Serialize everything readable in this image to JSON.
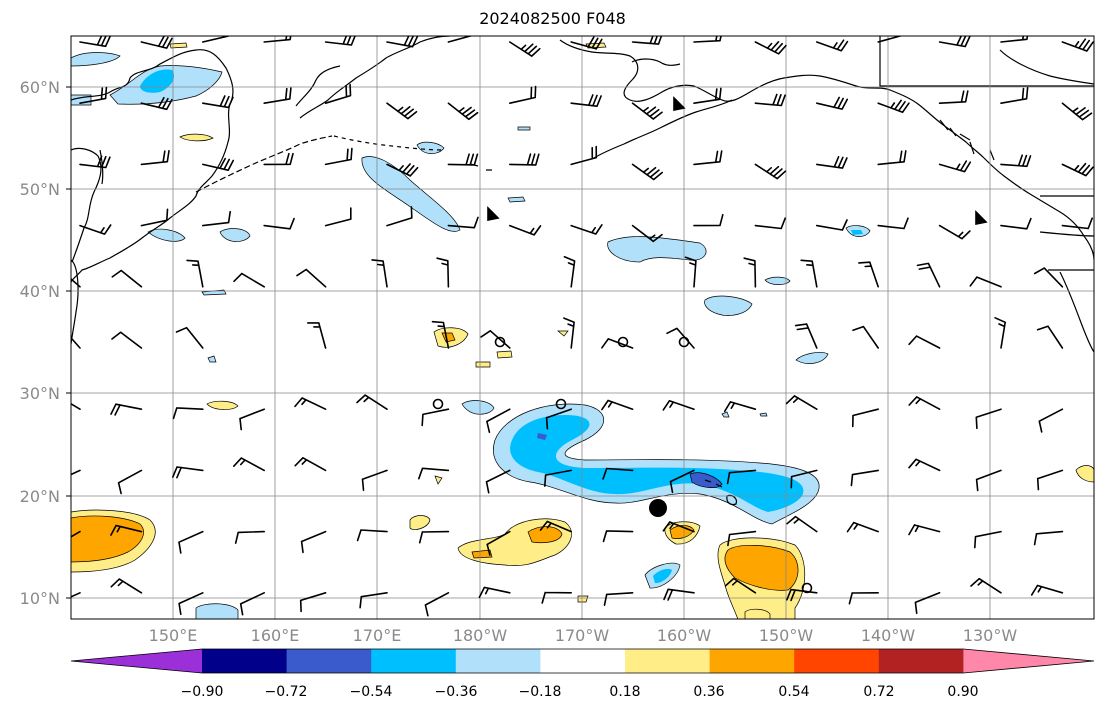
{
  "title": "2024082500 F048",
  "latitude_labels": [
    "60°N",
    "50°N",
    "40°N",
    "30°N",
    "20°N",
    "10°N"
  ],
  "longitude_labels": [
    "150°E",
    "160°E",
    "170°E",
    "180°W",
    "170°W",
    "160°W",
    "150°W",
    "140°W",
    "130°W"
  ],
  "colorbar": {
    "ticks": [
      "−0.90",
      "−0.72",
      "−0.54",
      "−0.36",
      "−0.18",
      "0.18",
      "0.36",
      "0.54",
      "0.72",
      "0.90"
    ],
    "colors": [
      "#9b30d9",
      "#00008b",
      "#3a5bcb",
      "#00bfff",
      "#b0e0fa",
      "#ffffff",
      "#ffee88",
      "#ffa500",
      "#ff4500",
      "#b22222",
      "#ff88aa"
    ]
  },
  "storm_marker": {
    "lat": 18.8,
    "lon": "162.5°W"
  },
  "circle_markers": [
    {
      "lat": 35,
      "lon": "178°W"
    },
    {
      "lat": 35,
      "lon": "166°W"
    },
    {
      "lat": 35,
      "lon": "160°W"
    },
    {
      "lat": 29,
      "lon": "184°W"
    },
    {
      "lat": 29,
      "lon": "172°W"
    },
    {
      "lat": 11,
      "lon": "148°W"
    }
  ]
}
